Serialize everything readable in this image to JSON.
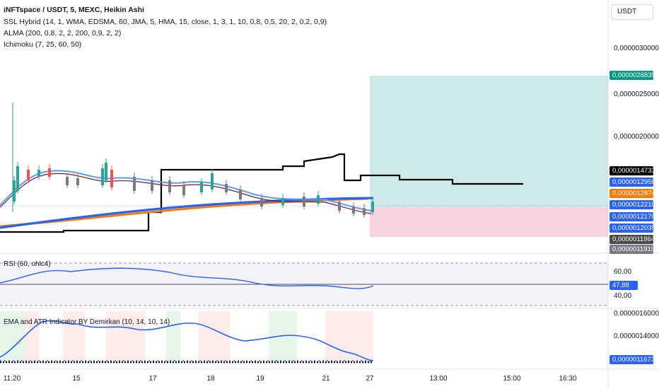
{
  "header": {
    "symbol_line": "iNFTspace / USDT, 5, MEXC, Heikin Ashi",
    "indicators": [
      "SSL Hybrid (14, 1, WMA, EDSMA, 60, JMA, 5, HMA, 15, close, 1, 3, 1, 10, 0,8, 0,5, 20, 2, 0,2, 0,9)",
      "ALMA (200, 0,8, 2, 2, 200, 0,9, 2, 2)",
      "Ichimoku (7, 25, 60, 50)"
    ],
    "currency_button": "USDT"
  },
  "price_axis": {
    "labels": [
      "0,0000030000",
      "0,0000025000",
      "0,0000020000"
    ],
    "tags": [
      {
        "text": "0,0000026839",
        "color": "#089981"
      },
      {
        "text": "0,0000014733",
        "color": "#000000"
      },
      {
        "text": "0,0000012958",
        "color": "#2962ff"
      },
      {
        "text": "0,0000012874",
        "color": "#f57c00"
      },
      {
        "text": "0,0000012210",
        "color": "#2962ff"
      },
      {
        "text": "0,0000012170",
        "color": "#2962ff"
      },
      {
        "text": "0,0000012035",
        "color": "#2962ff"
      },
      {
        "text": "0,0000011964",
        "color": "#4a4a4a"
      },
      {
        "text": "0,0000011919",
        "color": "#787b86"
      }
    ]
  },
  "rsi_pane": {
    "legend": "RSI (60, ohlc4)",
    "labels": [
      "60,00",
      "40,00"
    ],
    "value_tag": "47,88",
    "value_color": "#2962ff"
  },
  "ema_atr_pane": {
    "legend": "EMA and ATR Indicator BY Demirkan (10, 14, 10, 14)",
    "labels": [
      "0,0000016000",
      "0,0000014000"
    ],
    "value_tag": "0,0000011673",
    "value_color": "#2962ff"
  },
  "time_axis": {
    "labels": [
      "11:20",
      "15",
      "17",
      "18",
      "19",
      "21",
      "27",
      "13:00",
      "15:00",
      "16:30"
    ]
  },
  "colors": {
    "accent": "#2962ff",
    "profit_zone": "#b2dfdb",
    "loss_zone": "#f8bbd0",
    "alma_orange": "#f57c00",
    "ichimoku_black": "#000000"
  }
}
